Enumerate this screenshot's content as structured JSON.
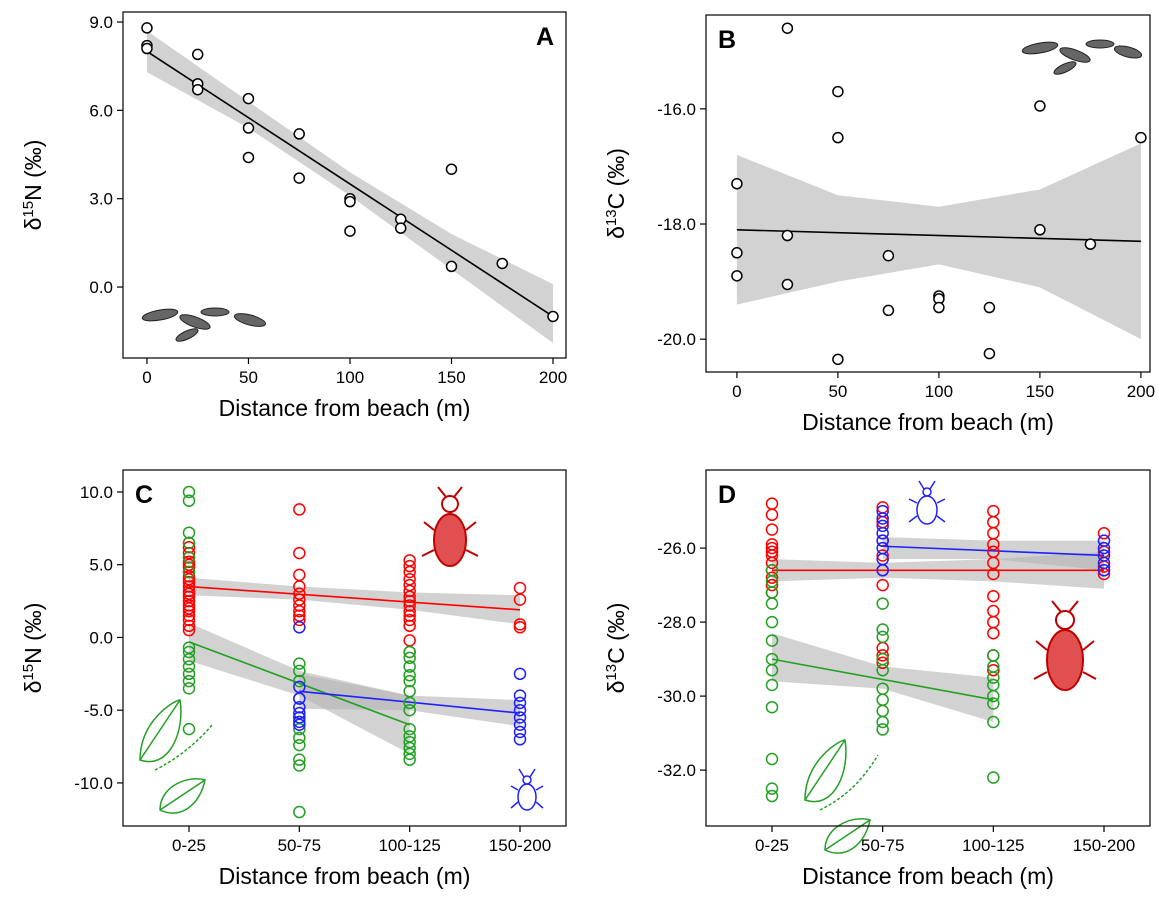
{
  "chart_data": [
    {
      "type": "scatter",
      "label": "A",
      "xlabel": "Distance from beach (m)",
      "ylabel": [
        "δ",
        "15",
        "N (‰)"
      ],
      "xlim": [
        -11.8,
        206.4
      ],
      "ylim": [
        -2.41,
        9.34
      ],
      "xticks": [
        0,
        50,
        100,
        150,
        200
      ],
      "yticks": [
        {
          "value": 0,
          "label": "0.0"
        },
        {
          "value": 3,
          "label": "3.0"
        },
        {
          "value": 6,
          "label": "6.0"
        },
        {
          "value": 9,
          "label": "9.0"
        }
      ],
      "x": [
        0,
        0,
        0,
        25,
        25,
        25,
        50,
        50,
        50,
        75,
        75,
        100,
        100,
        100,
        125,
        125,
        150,
        150,
        175,
        200
      ],
      "series": [
        {
          "color": "#000000",
          "values": [
            8.8,
            8.2,
            8.1,
            7.9,
            6.9,
            6.7,
            6.4,
            5.4,
            4.4,
            5.2,
            3.7,
            3.0,
            2.9,
            1.9,
            2.3,
            2.0,
            4.0,
            0.7,
            0.8,
            -1.0
          ],
          "fit": {
            "x": [
              0,
              200
            ],
            "values": [
              8.0,
              -1.0
            ]
          },
          "band": {
            "x": [
              0,
              50,
              100,
              150,
              200
            ],
            "lower": [
              7.3,
              5.4,
              3.1,
              0.6,
              -1.9
            ],
            "upper": [
              8.7,
              6.3,
              3.9,
              1.8,
              0.1
            ]
          }
        }
      ]
    },
    {
      "type": "scatter",
      "label": "B",
      "xlabel": "Distance from beach (m)",
      "ylabel": [
        "δ",
        "13",
        "C (‰)"
      ],
      "xlim": [
        -15.3,
        204.5
      ],
      "ylim": [
        -20.57,
        -14.37
      ],
      "xticks": [
        0,
        50,
        100,
        150,
        200
      ],
      "yticks": [
        {
          "value": -20,
          "label": "-20.0"
        },
        {
          "value": -18,
          "label": "-18.0"
        },
        {
          "value": -16,
          "label": "-16.0"
        }
      ],
      "x": [
        0,
        0,
        0,
        25,
        25,
        25,
        50,
        50,
        50,
        75,
        75,
        100,
        100,
        100,
        125,
        125,
        150,
        150,
        175,
        200
      ],
      "series": [
        {
          "color": "#000000",
          "values": [
            -17.3,
            -18.5,
            -18.9,
            -14.6,
            -18.2,
            -19.05,
            -15.7,
            -16.5,
            -20.35,
            -18.55,
            -19.5,
            -19.25,
            -19.3,
            -19.45,
            -19.45,
            -20.25,
            -15.95,
            -18.1,
            -18.35,
            -16.5
          ],
          "fit": {
            "x": [
              0,
              200
            ],
            "values": [
              -18.1,
              -18.3
            ]
          },
          "band": {
            "x": [
              0,
              50,
              100,
              150,
              200
            ],
            "lower": [
              -19.4,
              -19.0,
              -18.7,
              -19.1,
              -20.0
            ],
            "upper": [
              -16.8,
              -17.5,
              -17.7,
              -17.4,
              -16.6
            ]
          }
        }
      ]
    },
    {
      "type": "categorical-scatter",
      "label": "C",
      "xlabel": "Distance from beach (m)",
      "ylabel": [
        "δ",
        "15",
        "N (‰)"
      ],
      "ylim": [
        -12.96,
        11.51
      ],
      "categories": [
        "0-25",
        "50-75",
        "100-125",
        "150-200"
      ],
      "yticks": [
        {
          "value": -10,
          "label": "-10.0"
        },
        {
          "value": -5,
          "label": "-5.0"
        },
        {
          "value": 0,
          "label": "0.0"
        },
        {
          "value": 5,
          "label": "5.0"
        },
        {
          "value": 10,
          "label": "10.0"
        }
      ],
      "series": [
        {
          "color": "#ff0000",
          "values": [
            [
              6.5,
              6.2,
              5.8,
              5.5,
              5.2,
              5.0,
              4.8,
              4.5,
              4.2,
              4.0,
              3.8,
              3.5,
              3.2,
              3.0,
              2.8,
              2.5,
              2.2,
              2.0,
              1.8,
              1.5,
              1.2,
              0.8,
              0.5
            ],
            [
              8.8,
              5.8,
              4.3,
              3.5,
              3.0,
              2.6,
              2.2,
              1.8,
              1.5,
              1.2
            ],
            [
              5.3,
              4.9,
              4.5,
              4.0,
              3.6,
              3.2,
              2.8,
              2.5,
              2.2,
              1.8,
              1.5,
              1.2,
              0.8,
              -0.2,
              -1.0
            ],
            [
              3.4,
              2.6,
              0.9,
              0.7
            ]
          ],
          "fit": {
            "x": [
              "0-25",
              "150-200"
            ],
            "values": [
              3.5,
              1.9
            ]
          },
          "band": {
            "x": [
              "0-25",
              "50-75",
              "100-125",
              "150-200"
            ],
            "lower": [
              2.9,
              2.6,
              1.9,
              0.9
            ],
            "upper": [
              4.1,
              3.5,
              3.1,
              2.9
            ]
          }
        },
        {
          "color": "#22a022",
          "values": [
            [
              10.0,
              9.4,
              7.2,
              6.5,
              5.5,
              4.5,
              -0.7,
              -1.0,
              -1.5,
              -2.0,
              -2.5,
              -3.0,
              -3.5,
              -6.3
            ],
            [
              -1.8,
              -2.3,
              -3.0,
              -4.2,
              -5.5,
              -6.3,
              -6.9,
              -7.4,
              -8.4,
              -8.8,
              -12.0
            ],
            [
              -1.0,
              -1.4,
              -2.0,
              -2.6,
              -3.0,
              -3.7,
              -4.5,
              -5.0,
              -6.3,
              -6.8,
              -7.2,
              -7.6,
              -8.0,
              -8.4
            ],
            []
          ],
          "fit": {
            "x": [
              "0-25",
              "100-125"
            ],
            "values": [
              -0.3,
              -6.0
            ]
          },
          "band": {
            "x": [
              "0-25",
              "50-75",
              "100-125"
            ],
            "lower": [
              -1.6,
              -4.0,
              -8.0
            ],
            "upper": [
              1.0,
              -2.3,
              -4.0
            ]
          }
        },
        {
          "color": "#2020ff",
          "values": [
            [],
            [
              0.7,
              -3.4,
              -4.2,
              -4.8,
              -5.2,
              -5.5,
              -5.8,
              -6.0
            ],
            [],
            [
              -2.5,
              -4.0,
              -4.5,
              -5.0,
              -5.5,
              -6.0,
              -6.5,
              -7.0
            ]
          ],
          "fit": {
            "x": [
              "50-75",
              "150-200"
            ],
            "values": [
              -3.7,
              -5.2
            ]
          },
          "band": {
            "x": [
              "50-75",
              "100-125",
              "150-200"
            ],
            "lower": [
              -4.9,
              -5.0,
              -6.1
            ],
            "upper": [
              -2.5,
              -4.0,
              -4.3
            ]
          }
        }
      ]
    },
    {
      "type": "categorical-scatter",
      "label": "D",
      "xlabel": "Distance from beach (m)",
      "ylabel": [
        "δ",
        "13",
        "C (‰)"
      ],
      "ylim": [
        -33.51,
        -23.89
      ],
      "categories": [
        "0-25",
        "50-75",
        "100-125",
        "150-200"
      ],
      "yticks": [
        {
          "value": -32,
          "label": "-32.0"
        },
        {
          "value": -30,
          "label": "-30.0"
        },
        {
          "value": -28,
          "label": "-28.0"
        },
        {
          "value": -26,
          "label": "-26.0"
        }
      ],
      "series": [
        {
          "color": "#ff0000",
          "values": [
            [
              -24.8,
              -25.1,
              -25.5,
              -25.9,
              -26.0,
              -26.1,
              -26.2,
              -26.4,
              -26.6,
              -26.8,
              -27.0,
              -27.2
            ],
            [
              -24.9,
              -25.3,
              -25.8,
              -26.2,
              -26.6,
              -27.0,
              -28.7,
              -28.9,
              -29.1
            ],
            [
              -25.0,
              -25.3,
              -25.6,
              -25.9,
              -26.1,
              -26.4,
              -26.7,
              -27.3,
              -27.7,
              -28.0,
              -28.3,
              -28.9,
              -29.3
            ],
            [
              -25.6,
              -26.1,
              -26.5,
              -26.7
            ]
          ],
          "fit": {
            "x": [
              "0-25",
              "150-200"
            ],
            "values": [
              -26.6,
              -26.6
            ]
          },
          "band": {
            "x": [
              "0-25",
              "50-75",
              "100-125",
              "150-200"
            ],
            "lower": [
              -26.9,
              -26.8,
              -26.9,
              -27.1
            ],
            "upper": [
              -26.3,
              -26.4,
              -26.3,
              -26.1
            ]
          }
        },
        {
          "color": "#22a022",
          "values": [
            [
              -26.6,
              -26.9,
              -27.2,
              -27.5,
              -28.0,
              -28.5,
              -29.0,
              -29.3,
              -29.7,
              -30.3,
              -31.7,
              -32.5,
              -32.7
            ],
            [
              -27.5,
              -28.2,
              -28.4,
              -29.0,
              -29.3,
              -29.8,
              -30.1,
              -30.4,
              -30.7,
              -30.9
            ],
            [
              -28.9,
              -29.2,
              -29.5,
              -29.7,
              -30.0,
              -30.2,
              -30.7,
              -32.2
            ],
            []
          ],
          "fit": {
            "x": [
              "0-25",
              "100-125"
            ],
            "values": [
              -29.0,
              -30.1
            ]
          },
          "band": {
            "x": [
              "0-25",
              "50-75",
              "100-125"
            ],
            "lower": [
              -29.6,
              -29.8,
              -30.7
            ],
            "upper": [
              -28.3,
              -29.2,
              -29.5
            ]
          }
        },
        {
          "color": "#2020ff",
          "values": [
            [],
            [
              -25.0,
              -25.2,
              -25.4,
              -25.6,
              -25.8,
              -26.0,
              -26.3,
              -26.6
            ],
            [],
            [
              -25.8,
              -26.0,
              -26.2,
              -26.4,
              -26.6
            ]
          ],
          "fit": {
            "x": [
              "50-75",
              "150-200"
            ],
            "values": [
              -25.95,
              -26.2
            ]
          },
          "band": {
            "x": [
              "50-75",
              "100-125",
              "150-200"
            ],
            "lower": [
              -26.3,
              -26.3,
              -26.6
            ],
            "upper": [
              -25.7,
              -25.8,
              -25.8
            ]
          }
        }
      ]
    }
  ]
}
